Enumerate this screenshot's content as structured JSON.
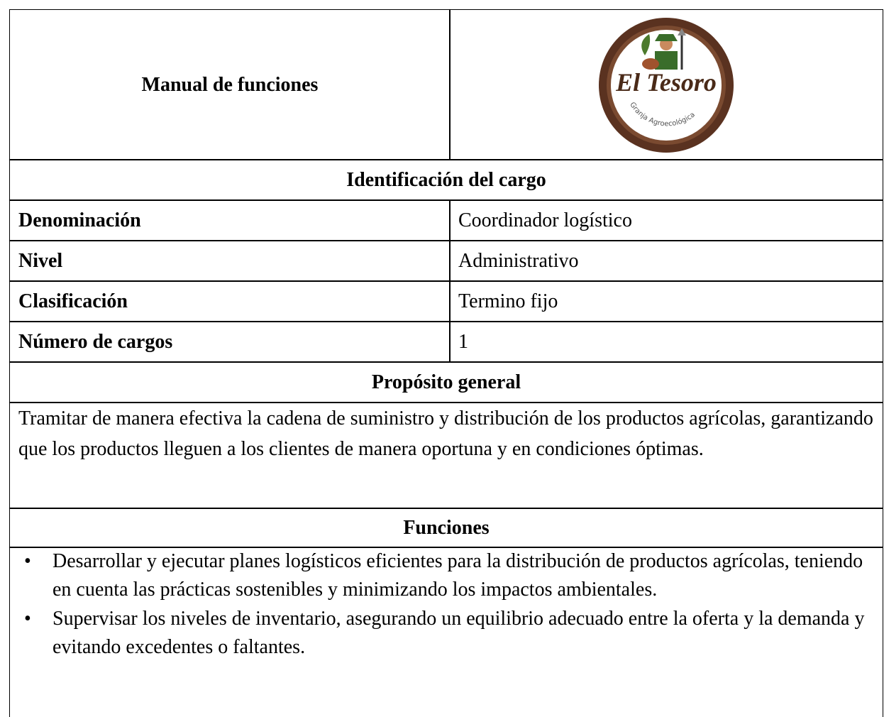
{
  "header": {
    "title": "Manual de funciones",
    "logo": {
      "name": "El Tesoro",
      "subtitle": "Granja Agroecológica"
    }
  },
  "identification": {
    "heading": "Identificación del cargo",
    "rows": [
      [
        "Denominación",
        "Coordinador logístico"
      ],
      [
        "Nivel",
        "Administrativo"
      ],
      [
        "Clasificación",
        "Termino fijo"
      ],
      [
        "Número de cargos",
        "1"
      ]
    ]
  },
  "purpose": {
    "heading": "Propósito general",
    "text": "Tramitar de manera efectiva la cadena de suministro y distribución de los productos agrícolas, garantizando que los productos lleguen a los clientes de manera oportuna y en condiciones óptimas."
  },
  "functions": {
    "heading": "Funciones",
    "items": [
      "Desarrollar y ejecutar planes logísticos eficientes para la distribución de productos agrícolas, teniendo en cuenta las prácticas sostenibles y minimizando los impactos ambientales.",
      "Supervisar los niveles de inventario, asegurando un equilibrio adecuado entre la oferta y la demanda y evitando excedentes o faltantes."
    ]
  }
}
